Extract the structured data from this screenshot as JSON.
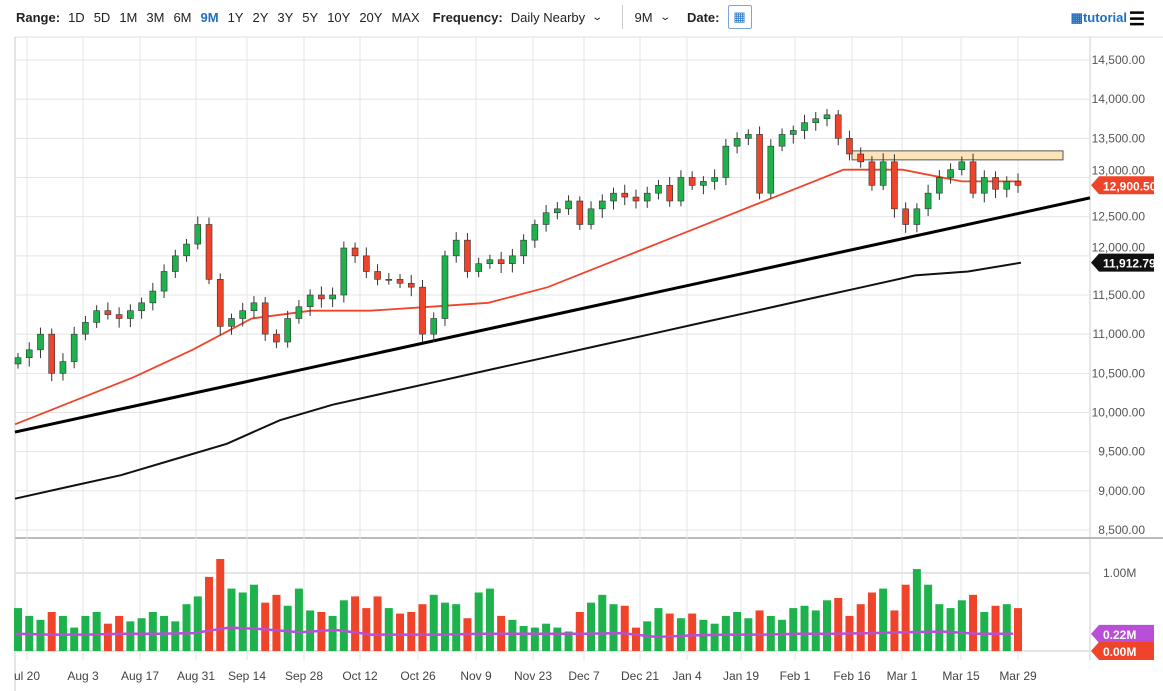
{
  "toolbar": {
    "range_label": "Range:",
    "ranges": [
      "1D",
      "5D",
      "1M",
      "3M",
      "6M",
      "9M",
      "1Y",
      "2Y",
      "3Y",
      "5Y",
      "10Y",
      "20Y",
      "MAX"
    ],
    "active_range": "9M",
    "frequency_label": "Frequency:",
    "frequency_value": "Daily Nearby",
    "period_value": "9M",
    "date_label": "Date:",
    "tutorial_label": "tutorial"
  },
  "colors": {
    "up": "#1db24b",
    "down": "#f0442a",
    "ma50": "#f0442a",
    "ma200": "#111111",
    "volma": "#b84fd6",
    "zone": "#fde3b8"
  },
  "chart_data": {
    "type": "candlestick",
    "price_axis": {
      "min": 8500,
      "max": 14500,
      "step": 500,
      "ticks": [
        "14,500.00",
        "14,000.00",
        "13,500.00",
        "13,000.00",
        "12,500.00",
        "12,000.00",
        "11,500.00",
        "11,000.00",
        "10,500.00",
        "10,000.00",
        "9,500.00",
        "9,000.00",
        "8,500.00"
      ]
    },
    "x_ticks": [
      "ul 20",
      "Aug 3",
      "Aug 17",
      "Aug 31",
      "Sep 14",
      "Sep 28",
      "Oct 12",
      "Oct 26",
      "Nov 9",
      "Nov 23",
      "Dec 7",
      "Dec 21",
      "Jan 4",
      "Jan 19",
      "Feb 1",
      "Feb 16",
      "Mar 1",
      "Mar 15",
      "Mar 29"
    ],
    "closes": [
      10700,
      10800,
      11000,
      10500,
      10650,
      11000,
      11150,
      11300,
      11250,
      11200,
      11300,
      11400,
      11550,
      11800,
      12000,
      12150,
      12400,
      11700,
      11100,
      11200,
      11300,
      11400,
      11000,
      10900,
      11200,
      11350,
      11500,
      11450,
      11500,
      12100,
      12000,
      11800,
      11700,
      11700,
      11650,
      11600,
      11000,
      11200,
      12000,
      12200,
      11800,
      11900,
      11950,
      11900,
      12000,
      12200,
      12400,
      12550,
      12600,
      12700,
      12400,
      12600,
      12700,
      12800,
      12750,
      12700,
      12800,
      12900,
      12700,
      13000,
      12900,
      12950,
      13000,
      13400,
      13500,
      13550,
      12800,
      13400,
      13550,
      13600,
      13700,
      13750,
      13800,
      13500,
      13300,
      13200,
      12900,
      13200,
      12600,
      12400,
      12600,
      12800,
      13000,
      13100,
      13200,
      12800,
      13000,
      12850,
      12950,
      12900
    ],
    "volumes_m": [
      0.55,
      0.45,
      0.4,
      0.5,
      0.45,
      0.3,
      0.45,
      0.5,
      0.35,
      0.45,
      0.38,
      0.42,
      0.5,
      0.45,
      0.38,
      0.6,
      0.7,
      0.95,
      1.18,
      0.8,
      0.75,
      0.85,
      0.62,
      0.72,
      0.58,
      0.8,
      0.52,
      0.5,
      0.45,
      0.65,
      0.7,
      0.55,
      0.7,
      0.55,
      0.48,
      0.5,
      0.6,
      0.72,
      0.62,
      0.6,
      0.42,
      0.75,
      0.8,
      0.45,
      0.4,
      0.32,
      0.3,
      0.35,
      0.3,
      0.25,
      0.5,
      0.62,
      0.72,
      0.6,
      0.58,
      0.3,
      0.38,
      0.55,
      0.48,
      0.42,
      0.48,
      0.4,
      0.35,
      0.45,
      0.5,
      0.42,
      0.52,
      0.45,
      0.4,
      0.55,
      0.58,
      0.52,
      0.65,
      0.68,
      0.45,
      0.6,
      0.75,
      0.8,
      0.52,
      0.85,
      1.05,
      0.85,
      0.6,
      0.55,
      0.65,
      0.72,
      0.5,
      0.58,
      0.6,
      0.55
    ],
    "ma50": [
      9850,
      10150,
      10450,
      10800,
      11200,
      11300,
      11300,
      11350,
      11400,
      11600,
      11900,
      12200,
      12500,
      12800,
      13100,
      13100,
      12950,
      12950
    ],
    "ma200": [
      8900,
      9050,
      9200,
      9400,
      9600,
      9900,
      10100,
      10250,
      10400,
      10550,
      10700,
      10850,
      11000,
      11150,
      11300,
      11450,
      11600,
      11750,
      11800,
      11912.79
    ],
    "vol_ma_m": [
      0.22,
      0.21,
      0.21,
      0.22,
      0.22,
      0.23,
      0.3,
      0.28,
      0.24,
      0.27,
      0.21,
      0.21,
      0.21,
      0.22,
      0.22,
      0.22,
      0.22,
      0.23,
      0.18,
      0.2,
      0.21,
      0.21,
      0.22,
      0.22,
      0.23,
      0.24,
      0.25,
      0.22,
      0.22
    ],
    "trendline": [
      9750,
      12740
    ],
    "zone": [
      13225,
      13340
    ],
    "last_price_label": "12,900.50",
    "ma200_label": "11,912.79",
    "volume_axis": {
      "tick": "1.00M",
      "volma_label": "0.22M",
      "zero_label": "0.00M"
    }
  }
}
